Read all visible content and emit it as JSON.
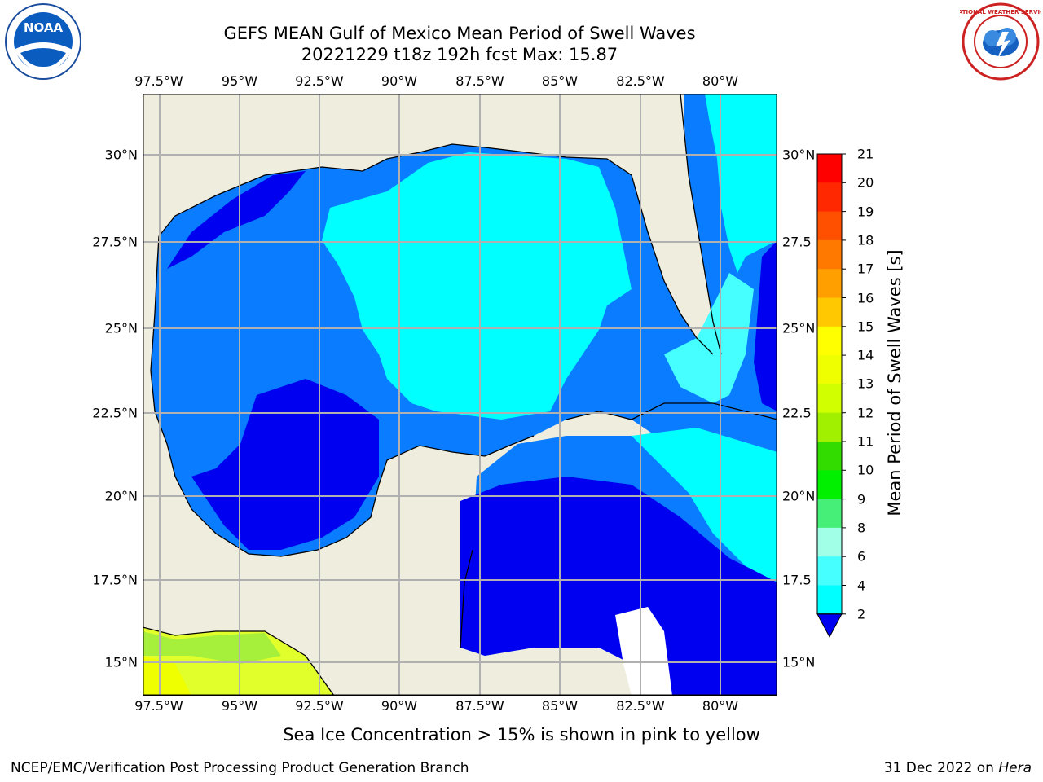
{
  "header": {
    "title_line1": "GEFS MEAN Gulf of Mexico Mean Period of Swell Waves",
    "title_line2": "20221229 t18z 192h fcst   Max: 15.87"
  },
  "map": {
    "lon_ticks": [
      "97.5°W",
      "95°W",
      "92.5°W",
      "90°W",
      "87.5°W",
      "85°W",
      "82.5°W",
      "80°W"
    ],
    "lat_ticks_left": [
      "30°N",
      "27.5°N",
      "25°N",
      "22.5°N",
      "20°N",
      "17.5°N",
      "15°N"
    ],
    "lat_ticks_right": [
      "30°N",
      "27.5",
      "25°N",
      "22.5",
      "20°N",
      "17.5",
      "15°N"
    ],
    "land_color": "#efedde",
    "ocean_colors": {
      "2-4": "#0a7cff",
      "<2": "#0000f0",
      "4-6": "#00ffff",
      "6-8": "#55ffff",
      "9-15": "#c8f000"
    }
  },
  "colorbar": {
    "title": "Mean Period of Swell Waves [s]",
    "labels": [
      "21",
      "20",
      "19",
      "18",
      "17",
      "16",
      "15",
      "14",
      "13",
      "12",
      "11",
      "10",
      "9",
      "8",
      "6",
      "4",
      "2"
    ],
    "colors": [
      "#ff0000",
      "#ff2800",
      "#ff5000",
      "#ff7800",
      "#ffa000",
      "#ffc800",
      "#ffff00",
      "#f0ff00",
      "#d2ff00",
      "#a0f000",
      "#32dc00",
      "#00f000",
      "#46f078",
      "#a0ffe6",
      "#46ffff",
      "#00ffff",
      "#0a7cff"
    ],
    "under_color": "#0000f0"
  },
  "footnote": "Sea Ice Concentration > 15% is shown in pink to yellow",
  "footer": {
    "left": "NCEP/EMC/Verification Post Processing Product Generation Branch",
    "right_prefix": "31 Dec 2022 on ",
    "right_host": "Hera"
  },
  "logos": {
    "left": "NOAA",
    "right": "NATIONAL WEATHER SERVICE"
  }
}
